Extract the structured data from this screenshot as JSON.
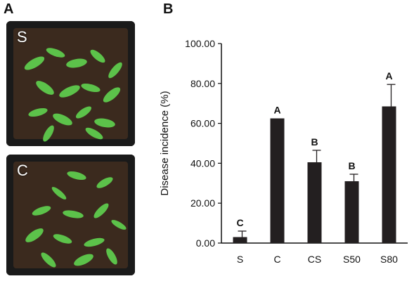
{
  "panels": {
    "a_label": "A",
    "b_label": "B"
  },
  "photos": {
    "top_tag": "S",
    "bottom_tag": "C",
    "soil_color": "#3b2a1e",
    "leaf_color": "#5cc24a",
    "tray_color": "#1a1a1a"
  },
  "chart_data": {
    "type": "bar",
    "title": "",
    "xlabel": "",
    "ylabel": "Disease incidence (%)",
    "ylim": [
      0,
      100
    ],
    "yticks": [
      0,
      20,
      40,
      60,
      80,
      100
    ],
    "ytick_labels": [
      "0.00",
      "20.00",
      "40.00",
      "60.00",
      "80.00",
      "100.00"
    ],
    "categories": [
      "S",
      "C",
      "CS",
      "S50",
      "S80"
    ],
    "values": [
      3,
      62.5,
      40.5,
      31,
      68.5
    ],
    "errors": [
      3,
      0,
      6,
      3.5,
      11
    ],
    "letters": [
      "C",
      "A",
      "B",
      "B",
      "A"
    ],
    "bar_color": "#231f20",
    "grid": false
  }
}
